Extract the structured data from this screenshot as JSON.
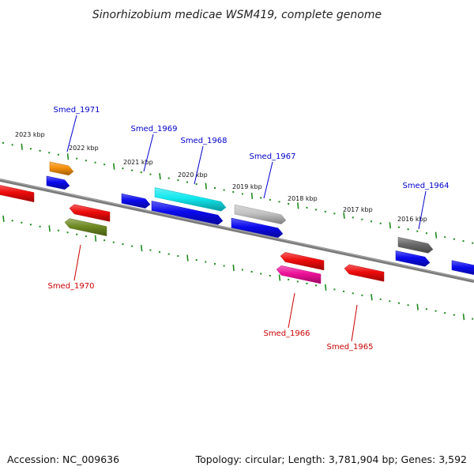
{
  "title": "Sinorhizobium medicae WSM419, complete genome",
  "footer": {
    "accession": "Accession: NC_009636",
    "summary": "Topology: circular; Length: 3,781,904 bp; Genes: 3,592"
  },
  "scale_labels": [
    "2023 kbp",
    "2022 kbp",
    "2021 kbp",
    "2020 kbp",
    "2019 kbp",
    "2018 kbp",
    "2017 kbp",
    "2016 kbp"
  ],
  "gene_labels": {
    "forward": [
      "Smed_1971",
      "Smed_1969",
      "Smed_1968",
      "Smed_1967",
      "Smed_1964"
    ],
    "reverse": [
      "Smed_1970",
      "Smed_1966",
      "Smed_1965"
    ]
  },
  "colors": {
    "backbone": "#7a7a7a",
    "ticks": "#1f8a1f",
    "forward_label": "#0000cc",
    "reverse_label": "#cc0000",
    "blue": "#0a0aee",
    "red": "#ee0a0a",
    "orange": "#f5900a",
    "cyan": "#10e8ee",
    "olive": "#6e8a22",
    "silver": "#c2c2c2",
    "magenta": "#ee1099",
    "darkgray": "#6a6a6a"
  }
}
